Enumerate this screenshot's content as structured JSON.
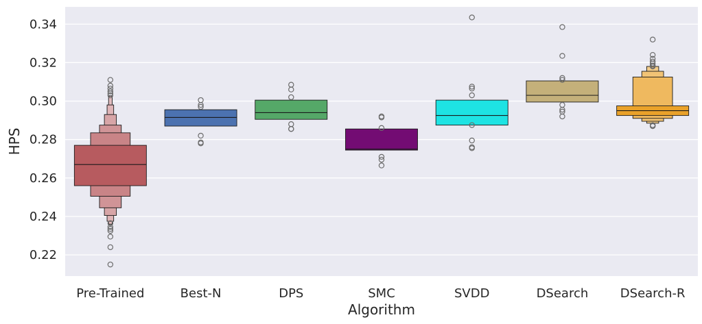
{
  "chart_data": {
    "type": "boxen",
    "xlabel": "Algorithm",
    "ylabel": "HPS",
    "ylim": [
      0.209,
      0.349
    ],
    "yticks": [
      0.22,
      0.24,
      0.26,
      0.28,
      0.3,
      0.32,
      0.34
    ],
    "ytick_labels": [
      "0.22",
      "0.24",
      "0.26",
      "0.28",
      "0.30",
      "0.32",
      "0.34"
    ],
    "grid": true,
    "background": "#eaeaf2",
    "categories": [
      "Pre-Trained",
      "Best-N",
      "DPS",
      "SMC",
      "SVDD",
      "DSearch",
      "DSearch-R"
    ],
    "series": [
      {
        "category": "Pre-Trained",
        "color": "#b75b5f",
        "median": 0.267,
        "levels": [
          [
            0.256,
            0.277
          ],
          [
            0.2505,
            0.2835
          ],
          [
            0.2445,
            0.2875
          ],
          [
            0.2405,
            0.293
          ],
          [
            0.2375,
            0.298
          ],
          [
            0.236,
            0.3025
          ]
        ],
        "outliers": [
          0.311,
          0.308,
          0.3065,
          0.305,
          0.304,
          0.303,
          0.2365,
          0.2345,
          0.2335,
          0.2325,
          0.2295,
          0.224,
          0.215
        ]
      },
      {
        "category": "Best-N",
        "color": "#4c72b0",
        "median": 0.2915,
        "levels": [
          [
            0.287,
            0.2955
          ]
        ],
        "outliers": [
          0.3005,
          0.298,
          0.297,
          0.282,
          0.2785,
          0.278
        ]
      },
      {
        "category": "DPS",
        "color": "#55a868",
        "median": 0.294,
        "levels": [
          [
            0.2905,
            0.3005
          ]
        ],
        "outliers": [
          0.3085,
          0.306,
          0.302,
          0.288,
          0.2855,
          0.2855
        ]
      },
      {
        "category": "SMC",
        "color": "#730c73",
        "median": 0.275,
        "levels": [
          [
            0.2745,
            0.2855
          ]
        ],
        "outliers": [
          0.292,
          0.2915,
          0.286,
          0.271,
          0.2695,
          0.2665
        ]
      },
      {
        "category": "SVDD",
        "color": "#1ee3e3",
        "median": 0.2925,
        "levels": [
          [
            0.2875,
            0.3005
          ]
        ],
        "outliers": [
          0.3435,
          0.3075,
          0.3065,
          0.303,
          0.2875,
          0.2795,
          0.276,
          0.2755
        ]
      },
      {
        "category": "DSearch",
        "color": "#c4b07a",
        "median": 0.303,
        "levels": [
          [
            0.2995,
            0.3105
          ]
        ],
        "outliers": [
          0.3385,
          0.3235,
          0.312,
          0.311,
          0.298,
          0.2955,
          0.2945,
          0.292
        ]
      },
      {
        "category": "DSearch-R",
        "color": "#eaa22a",
        "median": 0.295,
        "levels": [
          [
            0.2925,
            0.2975
          ],
          [
            0.291,
            0.3125
          ],
          [
            0.2895,
            0.3155
          ],
          [
            0.2885,
            0.318
          ]
        ],
        "outliers": [
          0.332,
          0.324,
          0.322,
          0.3205,
          0.3195,
          0.3185,
          0.318,
          0.2875,
          0.287,
          0.287
        ]
      }
    ]
  }
}
